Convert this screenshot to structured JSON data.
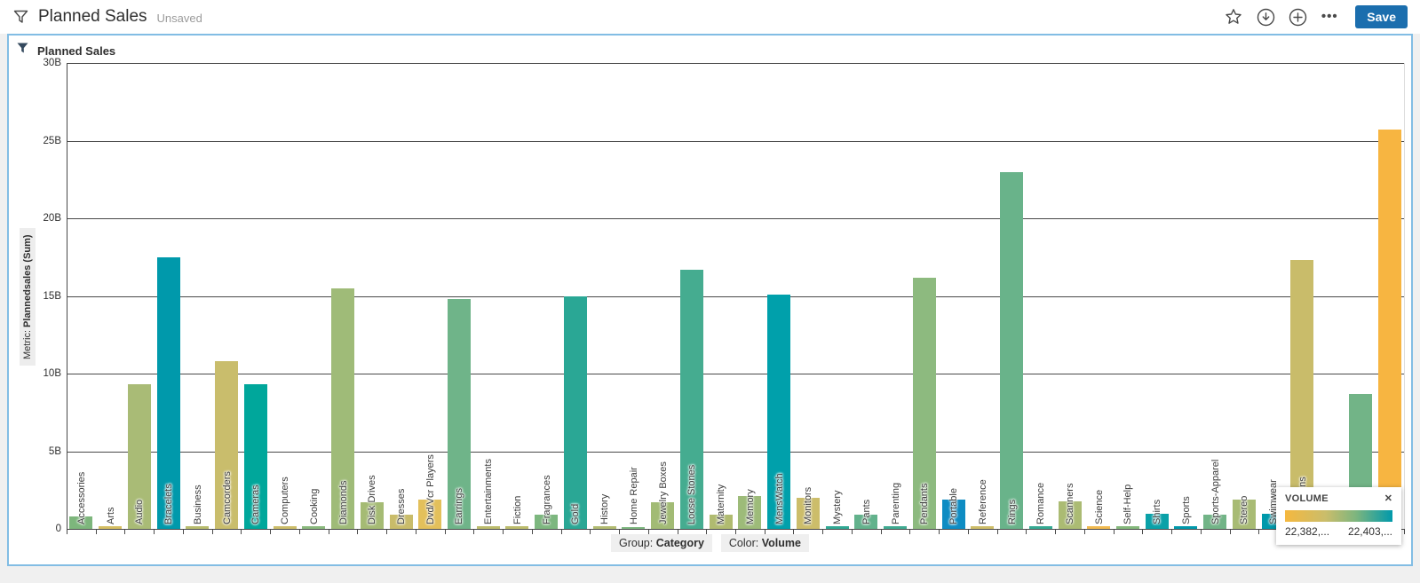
{
  "header": {
    "title": "Planned Sales",
    "status": "Unsaved",
    "save_label": "Save",
    "icons": [
      "funnel-icon",
      "star-icon",
      "download-circle-icon",
      "add-circle-icon",
      "more-options-icon"
    ]
  },
  "panel": {
    "title": "Planned Sales",
    "icon": "funnel-icon"
  },
  "axis": {
    "metric_prefix": "Metric:",
    "metric_name": "Plannedsales (Sum)"
  },
  "footer": {
    "group_label": "Group:",
    "group_value": "Category",
    "color_label": "Color:",
    "color_value": "Volume"
  },
  "legend": {
    "title": "VOLUME",
    "close_icon": "close-icon",
    "min_label": "22,382,...",
    "max_label": "22,403,...",
    "gradient_colors": [
      "#f5b83f",
      "#cabd6b",
      "#7db57e",
      "#0099ab"
    ]
  },
  "colors": {
    "accent_blue": "#1b6eae",
    "panel_border": "#82bde4",
    "grid": "#494949",
    "page_background": "#f0f0f0"
  },
  "chart_data": {
    "type": "bar",
    "title": "Planned Sales",
    "ylabel": "Metric: Plannedsales (Sum)",
    "xlabel_group": "Category",
    "color_by": "Volume",
    "ylim_billions": [
      0,
      30
    ],
    "grid": true,
    "y_ticks": [
      "30B",
      "25B",
      "20B",
      "15B",
      "10B",
      "5B",
      "0"
    ],
    "legend_position": "bottom-right",
    "bars": [
      {
        "label": "Accessories",
        "value_b": 0.8,
        "color": "#7db67c"
      },
      {
        "label": "Arts",
        "value_b": 0.15,
        "color": "#d5be62"
      },
      {
        "label": "Audio",
        "value_b": 9.3,
        "color": "#a9bb76"
      },
      {
        "label": "Bracelets",
        "value_b": 17.5,
        "color": "#0099ab"
      },
      {
        "label": "Business",
        "value_b": 0.2,
        "color": "#b8bc6d"
      },
      {
        "label": "Camcorders",
        "value_b": 10.8,
        "color": "#c9bd6c"
      },
      {
        "label": "Cameras",
        "value_b": 9.3,
        "color": "#00a79b"
      },
      {
        "label": "Computers",
        "value_b": 0.2,
        "color": "#ccbd69"
      },
      {
        "label": "Cooking",
        "value_b": 0.2,
        "color": "#8ab97d"
      },
      {
        "label": "Diamonds",
        "value_b": 15.5,
        "color": "#9fbb78"
      },
      {
        "label": "Disk Drives",
        "value_b": 1.7,
        "color": "#a5bb74"
      },
      {
        "label": "Dresses",
        "value_b": 0.9,
        "color": "#c9bc6a"
      },
      {
        "label": "Dvd/Vcr Players",
        "value_b": 1.9,
        "color": "#e3c05b"
      },
      {
        "label": "Earrings",
        "value_b": 14.8,
        "color": "#6fb489"
      },
      {
        "label": "Entertainments",
        "value_b": 0.15,
        "color": "#bcbc6c"
      },
      {
        "label": "Fiction",
        "value_b": 0.15,
        "color": "#bcbc6c"
      },
      {
        "label": "Fragrances",
        "value_b": 0.9,
        "color": "#7db77f"
      },
      {
        "label": "Gold",
        "value_b": 15.0,
        "color": "#2aa795"
      },
      {
        "label": "History",
        "value_b": 0.15,
        "color": "#b2bb71"
      },
      {
        "label": "Home Repair",
        "value_b": 0.1,
        "color": "#7db77f"
      },
      {
        "label": "Jewelry Boxes",
        "value_b": 1.7,
        "color": "#a2bb75"
      },
      {
        "label": "Loose Stones",
        "value_b": 16.7,
        "color": "#45ac90"
      },
      {
        "label": "Maternity",
        "value_b": 0.9,
        "color": "#b0bb70"
      },
      {
        "label": "Memory",
        "value_b": 2.1,
        "color": "#9dbb79"
      },
      {
        "label": "MensWatch",
        "value_b": 15.1,
        "color": "#00a0ab"
      },
      {
        "label": "Monitors",
        "value_b": 2.0,
        "color": "#ccbd6a"
      },
      {
        "label": "Mystery",
        "value_b": 0.2,
        "color": "#30a893"
      },
      {
        "label": "Pants",
        "value_b": 0.9,
        "color": "#63b28c"
      },
      {
        "label": "Parenting",
        "value_b": 0.2,
        "color": "#3faa91"
      },
      {
        "label": "Pendants",
        "value_b": 16.2,
        "color": "#8dba7f"
      },
      {
        "label": "Portable",
        "value_b": 1.9,
        "color": "#0e8cc3"
      },
      {
        "label": "Reference",
        "value_b": 0.2,
        "color": "#cdbd68"
      },
      {
        "label": "Rings",
        "value_b": 23.0,
        "color": "#69b38a"
      },
      {
        "label": "Romance",
        "value_b": 0.2,
        "color": "#35a992"
      },
      {
        "label": "Scanners",
        "value_b": 1.8,
        "color": "#abbb73"
      },
      {
        "label": "Science",
        "value_b": 0.2,
        "color": "#f0b94f"
      },
      {
        "label": "Self-Help",
        "value_b": 0.15,
        "color": "#84b87b"
      },
      {
        "label": "Shirts",
        "value_b": 1.0,
        "color": "#0aa1a8"
      },
      {
        "label": "Sports",
        "value_b": 0.2,
        "color": "#0099ab"
      },
      {
        "label": "Sports-Apparel",
        "value_b": 0.9,
        "color": "#72b487"
      },
      {
        "label": "Stereo",
        "value_b": 1.9,
        "color": "#a8bb74"
      },
      {
        "label": "Swimwear",
        "value_b": 1.0,
        "color": "#0099ab"
      },
      {
        "label": "Televisions",
        "value_b": 17.3,
        "color": "#c9bc6a"
      },
      {
        "label": "",
        "value_b": 0.2,
        "color": "#c0bc6e"
      },
      {
        "label": "",
        "value_b": 8.7,
        "color": "#72b487"
      },
      {
        "label": "Watch",
        "value_b": 25.7,
        "color": "#f7b541"
      }
    ]
  }
}
